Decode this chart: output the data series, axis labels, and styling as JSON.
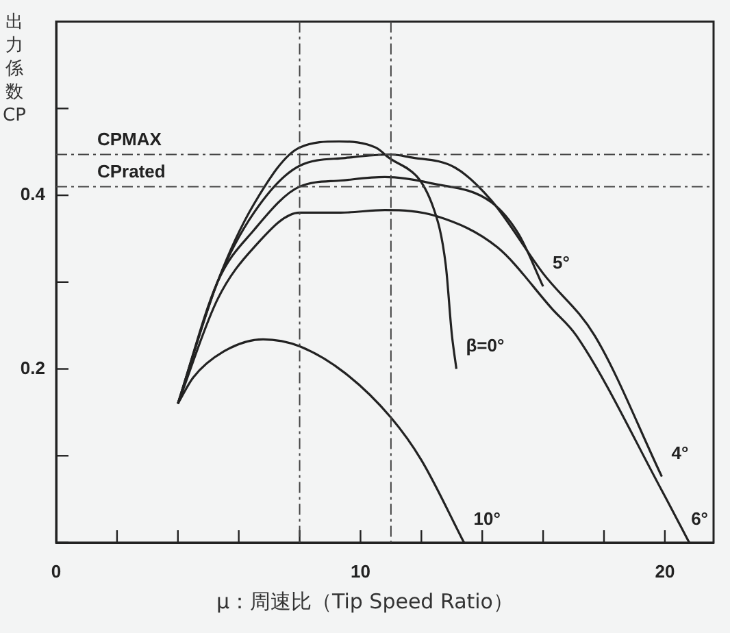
{
  "chart_data": {
    "type": "line",
    "xlabel": "μ：周速比（Tip Speed Ratio）",
    "ylabel": "出力係数CP",
    "xlim": [
      0,
      21.6
    ],
    "ylim": [
      0,
      0.6
    ],
    "xticks": [
      0,
      {
        "value": 2,
        "label": null
      },
      {
        "value": 4,
        "label": null
      },
      {
        "value": 6,
        "label": null
      },
      {
        "value": 8,
        "label": null
      },
      10,
      {
        "value": 12,
        "label": null
      },
      {
        "value": 14,
        "label": null
      },
      {
        "value": 16,
        "label": null
      },
      {
        "value": 18,
        "label": null
      },
      20
    ],
    "yticks": [
      {
        "value": 0,
        "label": null
      },
      {
        "value": 0.1,
        "label": null
      },
      0.2,
      {
        "value": 0.3,
        "label": null
      },
      0.4,
      {
        "value": 0.5,
        "label": null
      }
    ],
    "marker": "none",
    "line_style": "solid",
    "legend": false,
    "series": [
      {
        "name": "β=0°",
        "color": "#222222",
        "x": [
          4,
          5.3,
          6.5,
          8,
          9.3,
          10.5,
          10.8,
          12.4,
          12.8,
          13,
          13.15
        ],
        "values": [
          0.16,
          0.3,
          0.39,
          0.455,
          0.462,
          0.455,
          0.447,
          0.385,
          0.32,
          0.24,
          0.2
        ]
      },
      {
        "name": "4°",
        "color": "#222222",
        "x": [
          4,
          5.3,
          6.5,
          8,
          9.5,
          11,
          11.6,
          13.1,
          14.3,
          16,
          17.7,
          19.9
        ],
        "values": [
          0.16,
          0.3,
          0.38,
          0.434,
          0.443,
          0.447,
          0.444,
          0.432,
          0.394,
          0.31,
          0.238,
          0.076
        ]
      },
      {
        "name": "5°",
        "color": "#222222",
        "x": [
          4,
          5.3,
          6.5,
          8,
          9.35,
          10.8,
          12.3,
          14.3,
          15.2,
          16
        ],
        "values": [
          0.16,
          0.3,
          0.36,
          0.41,
          0.417,
          0.421,
          0.414,
          0.392,
          0.355,
          0.295
        ]
      },
      {
        "name": "6°",
        "color": "#222222",
        "x": [
          4,
          5.3,
          6.5,
          8,
          9.35,
          10.8,
          12.5,
          14.5,
          16.3,
          17.1,
          19.9,
          20.8
        ],
        "values": [
          0.16,
          0.28,
          0.34,
          0.38,
          0.38,
          0.383,
          0.376,
          0.34,
          0.269,
          0.238,
          0.06,
          0
        ]
      },
      {
        "name": "10°",
        "color": "#222222",
        "x": [
          4,
          4.5,
          5.5,
          6.8,
          8,
          9.5,
          11,
          12,
          13.4
        ],
        "values": [
          0.16,
          0.19,
          0.22,
          0.234,
          0.226,
          0.195,
          0.144,
          0.095,
          0
        ]
      }
    ],
    "ref_lines": [
      {
        "axis": "y",
        "value": 0.447,
        "label": "CPMAX",
        "color": "#444444",
        "line_style": "dashed"
      },
      {
        "axis": "y",
        "value": 0.41,
        "label": "CPrated",
        "color": "#444444",
        "line_style": "dashed"
      },
      {
        "axis": "x",
        "value": 8,
        "color": "#444444",
        "line_style": "dashed"
      },
      {
        "axis": "x",
        "value": 11,
        "color": "#444444",
        "line_style": "dashed"
      }
    ]
  }
}
